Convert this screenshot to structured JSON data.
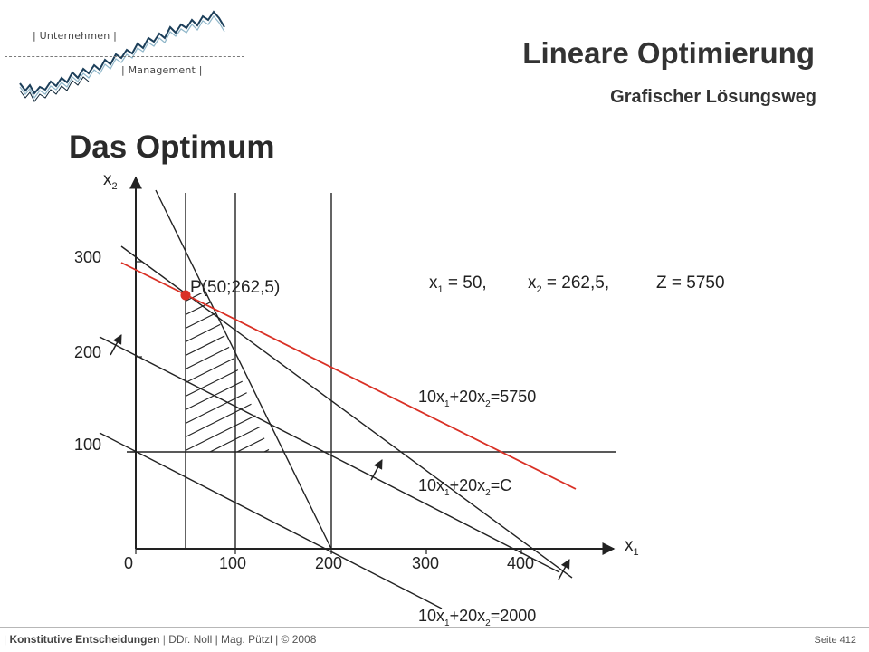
{
  "header": {
    "logo_top": "| Unternehmen |",
    "logo_bottom": "| Management |",
    "title": "Lineare Optimierung",
    "subtitle": "Grafischer Lösungsweg"
  },
  "slide_heading": "Das Optimum",
  "diagram": {
    "axis_x_name": "x",
    "axis_x_sub": "1",
    "axis_y_name": "x",
    "axis_y_sub": "2",
    "x_ticks": [
      "0",
      "100",
      "200",
      "300",
      "400"
    ],
    "y_ticks": [
      "100",
      "200",
      "300"
    ],
    "point_label": "P(50;262,5)",
    "solution": {
      "x1_name": "x",
      "x1_sub": "1",
      "x1_value": " = 50,",
      "x2_name": "x",
      "x2_sub": "2",
      "x2_value": " = 262,5,",
      "z_text": "Z = 5750"
    },
    "line_label_optimum": {
      "p1": "10x",
      "s1": "1",
      "p2": "+20x",
      "s2": "2",
      "p3": "=5750"
    },
    "line_label_c": {
      "p1": "10x",
      "s1": "1",
      "p2": "+20x",
      "s2": "2",
      "p3": "=C"
    },
    "line_label_2000": {
      "p1": "10x",
      "s1": "1",
      "p2": "+20x",
      "s2": "2",
      "p3": "=2000"
    },
    "colors": {
      "objective_line": "#d93025",
      "optimum_point": "#d93025",
      "lines": "#222222"
    }
  },
  "footer": {
    "section": "Konstitutive Entscheidungen",
    "authors": "DDr. Noll | Mag. Pützl | © 2008",
    "page": "Seite 412"
  }
}
